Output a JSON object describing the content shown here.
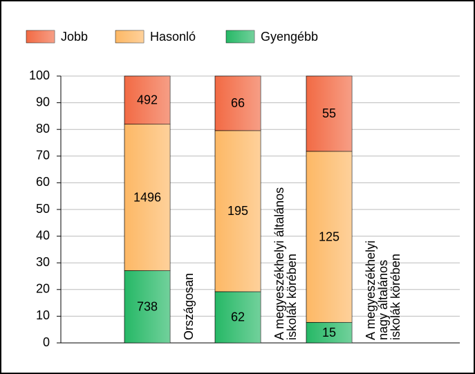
{
  "chart_data": {
    "type": "bar",
    "stacking": "percent",
    "categories": [
      "Országosan",
      "A megyeszékhelyi általános\niskolák körében",
      "A megyeszékhelyi nagy általános\niskolák körében"
    ],
    "series": [
      {
        "name": "Jobb",
        "color": "#f26a44",
        "values": [
          492,
          66,
          55
        ]
      },
      {
        "name": "Hasonló",
        "color": "#fdb865",
        "values": [
          1496,
          195,
          125
        ]
      },
      {
        "name": "Gyengébb",
        "color": "#26b866",
        "values": [
          738,
          62,
          15
        ]
      }
    ],
    "ylim": [
      0,
      100
    ],
    "yticks": [
      0,
      10,
      20,
      30,
      40,
      50,
      60,
      70,
      80,
      90,
      100
    ],
    "grid": true,
    "legend": "top"
  }
}
